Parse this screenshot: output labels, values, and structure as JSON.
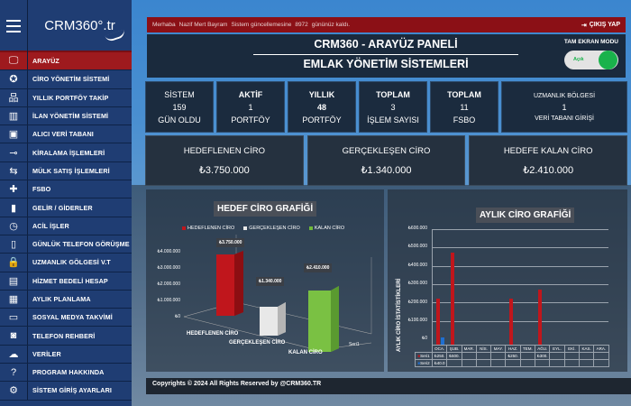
{
  "sidebar": {
    "logo": "CRM360°.tr",
    "items": [
      {
        "label": "ARAYÜZ",
        "icon": "monitor-icon",
        "glyph": "🖵",
        "active": true
      },
      {
        "label": "CİRO YÖNETİM SİSTEMİ",
        "icon": "award-icon",
        "glyph": "✪"
      },
      {
        "label": "YILLIK PORTFÖY TAKİP",
        "icon": "sitemap-icon",
        "glyph": "品"
      },
      {
        "label": "İLAN YÖNETİM SİSTEMİ",
        "icon": "books-icon",
        "glyph": "▥"
      },
      {
        "label": "ALICI VERİ TABANI",
        "icon": "id-card-icon",
        "glyph": "▣"
      },
      {
        "label": "KİRALAMA İŞLEMLERİ",
        "icon": "key-icon",
        "glyph": "⊸"
      },
      {
        "label": "MÜLK SATIŞ İŞLEMLERİ",
        "icon": "handshake-icon",
        "glyph": "⇆"
      },
      {
        "label": "FSBO",
        "icon": "puzzle-icon",
        "glyph": "✚"
      },
      {
        "label": "GELİR / GİDERLER",
        "icon": "chart-icon",
        "glyph": "▮"
      },
      {
        "label": "ACİL İŞLER",
        "icon": "clock-icon",
        "glyph": "◷"
      },
      {
        "label": "GÜNLÜK TELEFON GÖRÜŞME",
        "icon": "phone-icon",
        "glyph": "▯"
      },
      {
        "label": "UZMANLIK GÖLGESİ V.T",
        "icon": "lock-icon",
        "glyph": "🔒"
      },
      {
        "label": "HİZMET BEDELİ HESAP",
        "icon": "calculator-icon",
        "glyph": "▤"
      },
      {
        "label": "AYLIK PLANLAMA",
        "icon": "calendar-icon",
        "glyph": "▦"
      },
      {
        "label": "SOSYAL MEDYA TAKVİMİ",
        "icon": "chat-icon",
        "glyph": "▭"
      },
      {
        "label": "TELEFON REHBERİ",
        "icon": "address-book-icon",
        "glyph": "◙"
      },
      {
        "label": "VERİLER",
        "icon": "cloud-icon",
        "glyph": "☁"
      },
      {
        "label": "PROGRAM HAKKINDA",
        "icon": "question-icon",
        "glyph": "?"
      },
      {
        "label": "SİSTEM GİRİŞ AYARLARI",
        "icon": "gear-icon",
        "glyph": "⚙"
      }
    ]
  },
  "topbar": {
    "greeting": "Merhaba",
    "user": "Nazif Mert Bayram",
    "update_text": "Sistem güncellemesine",
    "days": "8972",
    "days_suffix": "gününüz kaldı.",
    "logout": "ÇIKIŞ YAP"
  },
  "header": {
    "title": "CRM360 - ARAYÜZ PANELİ",
    "subtitle": "EMLAK YÖNETİM SİSTEMLERİ",
    "fullscreen_label": "TAM EKRAN MODU",
    "toggle_state": "Açık"
  },
  "stats": [
    {
      "top": "SİSTEM",
      "value": "159",
      "bottom": "GÜN OLDU"
    },
    {
      "top": "AKTİF",
      "value": "1",
      "bottom": "PORTFÖY"
    },
    {
      "top": "YILLIK",
      "value": "48",
      "bottom": "PORTFÖY"
    },
    {
      "top": "TOPLAM",
      "value": "3",
      "bottom": "İŞLEM SAYISI"
    },
    {
      "top": "TOPLAM",
      "value": "11",
      "bottom": "FSBO"
    },
    {
      "top": "UZMANLIK BÖLGESİ",
      "value": "1",
      "bottom": "VERİ TABANI GİRİŞİ"
    }
  ],
  "revenue": [
    {
      "label": "HEDEFLENEN CİRO",
      "value": "₺3.750.000"
    },
    {
      "label": "GERÇEKLEŞEN CİRO",
      "value": "₺1.340.000"
    },
    {
      "label": "HEDEFE KALAN CİRO",
      "value": "₺2.410.000"
    }
  ],
  "footer": "Copyrights © 2024 All Rights Reserved by @CRM360.TR",
  "chart_data": [
    {
      "type": "bar",
      "title": "HEDEF CİRO GRAFİĞİ",
      "categories": [
        "HEDEFLENEN CİRO",
        "GERÇEKLEŞEN CİRO",
        "KALAN CİRO"
      ],
      "values": [
        3750000,
        1340000,
        2410000
      ],
      "data_labels": [
        "₺3.750.000",
        "₺1.340.000",
        "₺2.410.000"
      ],
      "colors": [
        "#c0161c",
        "#e8e8e8",
        "#6fb93a"
      ],
      "legend": [
        "HEDEFLENEN CİRO",
        "GERÇEKLEŞEN CİRO",
        "KALAN CİRO"
      ],
      "yticks": [
        "₺0",
        "₺1.000.000",
        "₺2.000.000",
        "₺3.000.000",
        "₺4.000.000"
      ],
      "series_label": "Seri1",
      "ylim": [
        0,
        4000000
      ]
    },
    {
      "type": "bar",
      "title": "AYLIK CİRO GRAFİĞİ",
      "ylabel": "AYLIK CİRO İSTATİSTİKLERİ",
      "categories": [
        "OCA.",
        "ŞUB.",
        "MAR.",
        "NİS.",
        "MAY.",
        "HAZ.",
        "TEM.",
        "AĞU.",
        "EYL.",
        "EKİ.",
        "KAS.",
        "ARA."
      ],
      "series": [
        {
          "name": "Seri1",
          "color": "#c0161c",
          "values": [
            250000,
            500000,
            0,
            0,
            0,
            250000,
            0,
            300000,
            0,
            0,
            0,
            0
          ],
          "table": [
            "₺250.",
            "₺500.",
            "",
            "",
            "",
            "₺250.",
            "",
            "₺300.",
            "",
            "",
            "",
            ""
          ]
        },
        {
          "name": "Seri2",
          "color": "#1f6fd1",
          "values": [
            40000,
            0,
            0,
            0,
            0,
            0,
            0,
            0,
            0,
            0,
            0,
            0
          ],
          "table": [
            "₺40.0",
            "",
            "",
            "",
            "",
            "",
            "",
            "",
            "",
            "",
            "",
            ""
          ]
        }
      ],
      "yticks": [
        "₺0",
        "₺100.000",
        "₺200.000",
        "₺300.000",
        "₺400.000",
        "₺500.000",
        "₺600.000"
      ],
      "ylim": [
        0,
        600000
      ]
    }
  ]
}
